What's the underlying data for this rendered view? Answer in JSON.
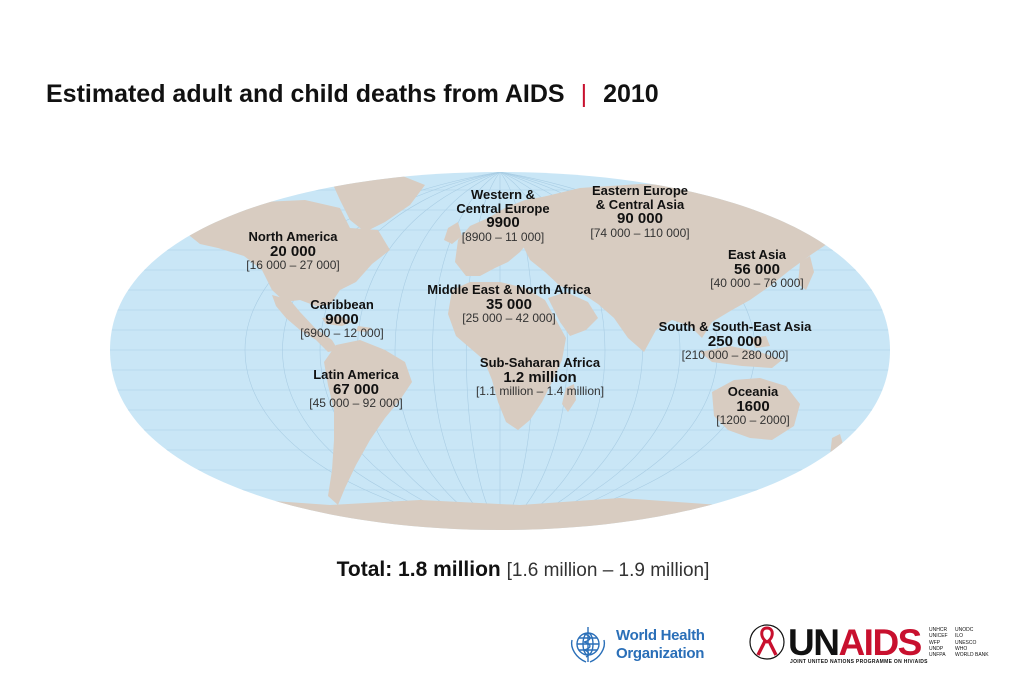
{
  "title": {
    "main": "Estimated adult and child deaths from AIDS",
    "separator": "|",
    "year": "2010"
  },
  "colors": {
    "ocean": "#c9e6f6",
    "land": "#d8ccc1",
    "grid": "#a9cde4",
    "accent": "#c8102e",
    "who_blue": "#2a6fb8"
  },
  "regions": [
    {
      "id": "north-america",
      "name": "North America",
      "value": "20 000",
      "range": "[16 000 – 27 000]"
    },
    {
      "id": "caribbean",
      "name": "Caribbean",
      "value": "9000",
      "range": "[6900 – 12 000]"
    },
    {
      "id": "latin-america",
      "name": "Latin America",
      "value": "67 000",
      "range": "[45 000 – 92 000]"
    },
    {
      "id": "western-central-europe",
      "name": "Western &\nCentral Europe",
      "value": "9900",
      "range": "[8900 – 11 000]"
    },
    {
      "id": "eastern-europe-central-asia",
      "name": "Eastern Europe\n& Central Asia",
      "value": "90 000",
      "range": "[74 000 – 110 000]"
    },
    {
      "id": "middle-east-north-africa",
      "name": "Middle East & North Africa",
      "value": "35 000",
      "range": "[25 000 – 42 000]"
    },
    {
      "id": "sub-saharan-africa",
      "name": "Sub-Saharan Africa",
      "value": "1.2 million",
      "range": "[1.1 million – 1.4 million]"
    },
    {
      "id": "east-asia",
      "name": "East Asia",
      "value": "56 000",
      "range": "[40 000 – 76 000]"
    },
    {
      "id": "south-southeast-asia",
      "name": "South & South-East Asia",
      "value": "250 000",
      "range": "[210 000 – 280 000]"
    },
    {
      "id": "oceania",
      "name": "Oceania",
      "value": "1600",
      "range": "[1200 – 2000]"
    }
  ],
  "total": {
    "label": "Total: 1.8 million",
    "range": "[1.6 million – 1.9 million]"
  },
  "logos": {
    "who_line1": "World Health",
    "who_line2": "Organization",
    "unaids_un": "UN",
    "unaids_aids": "AIDS",
    "unaids_tagline": "JOINT UNITED NATIONS PROGRAMME ON HIV/AIDS",
    "sponsors": [
      "UNHCR",
      "UNODC",
      "UNICEF",
      "ILO",
      "WFP",
      "UNESCO",
      "UNDP",
      "WHO",
      "UNFPA",
      "WORLD BANK"
    ]
  }
}
